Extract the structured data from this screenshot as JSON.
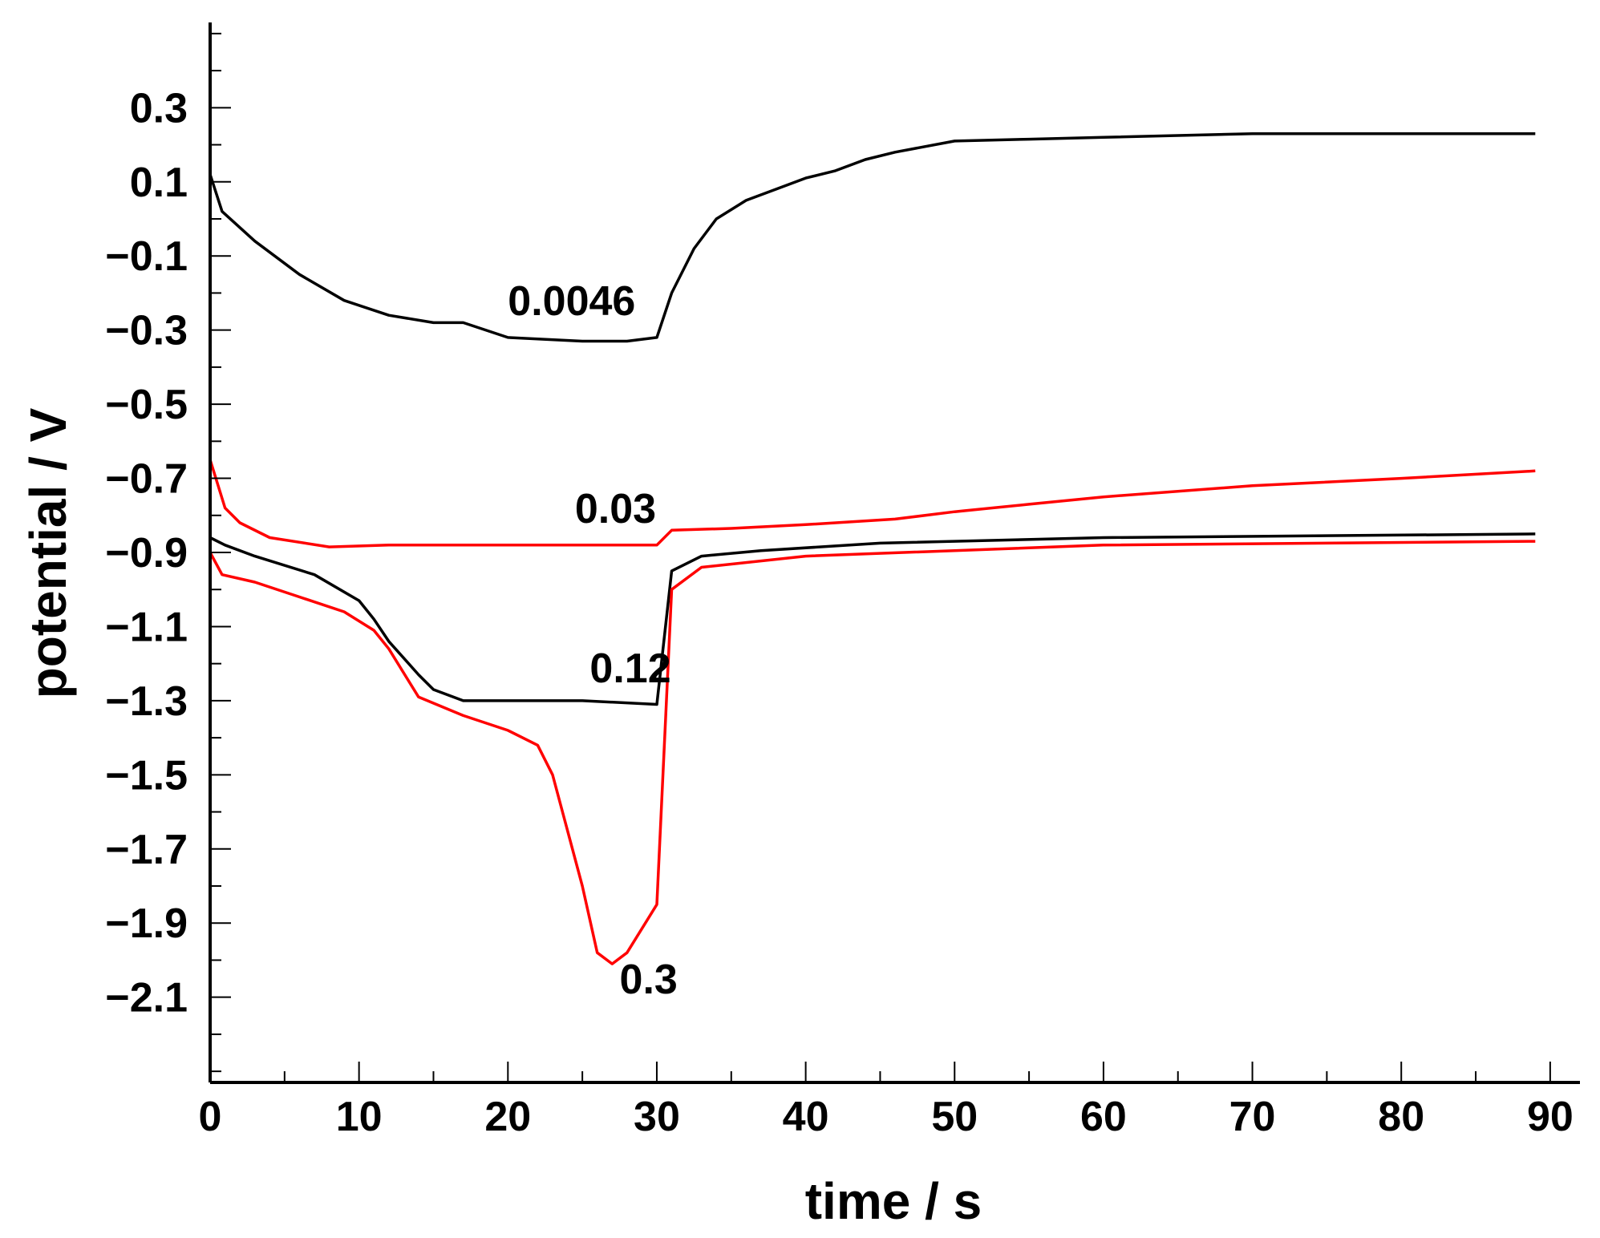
{
  "chart_data": {
    "type": "line",
    "xlabel": "time / s",
    "ylabel": "potential / V",
    "xlim": [
      0,
      92
    ],
    "ylim": [
      -2.33,
      0.53
    ],
    "x_ticks": [
      0,
      10,
      20,
      30,
      40,
      50,
      60,
      70,
      80,
      90
    ],
    "x_tick_labels": [
      "0",
      "10",
      "20",
      "30",
      "40",
      "50",
      "60",
      "70",
      "80",
      "90"
    ],
    "y_ticks": [
      0.3,
      0.1,
      -0.1,
      -0.3,
      -0.5,
      -0.7,
      -0.9,
      -1.1,
      -1.3,
      -1.5,
      -1.7,
      -1.9,
      -2.1
    ],
    "y_tick_labels": [
      "0.3",
      "0.1",
      "−0.1",
      "−0.3",
      "−0.5",
      "−0.7",
      "−0.9",
      "−1.1",
      "−1.3",
      "−1.5",
      "−1.7",
      "−1.9",
      "−2.1"
    ],
    "grid": false,
    "series": [
      {
        "label": "0.0046",
        "label_at": [
          20,
          -0.26
        ],
        "color": "#000000",
        "points": [
          [
            0,
            0.12
          ],
          [
            0.8,
            0.02
          ],
          [
            3,
            -0.06
          ],
          [
            6,
            -0.15
          ],
          [
            9,
            -0.22
          ],
          [
            12,
            -0.26
          ],
          [
            15,
            -0.28
          ],
          [
            17,
            -0.28
          ],
          [
            20,
            -0.32
          ],
          [
            25,
            -0.33
          ],
          [
            28,
            -0.33
          ],
          [
            30,
            -0.32
          ],
          [
            31,
            -0.2
          ],
          [
            32.5,
            -0.08
          ],
          [
            34,
            0.0
          ],
          [
            36,
            0.05
          ],
          [
            38,
            0.08
          ],
          [
            40,
            0.11
          ],
          [
            42,
            0.13
          ],
          [
            44,
            0.16
          ],
          [
            46,
            0.18
          ],
          [
            50,
            0.21
          ],
          [
            55,
            0.215
          ],
          [
            60,
            0.22
          ],
          [
            70,
            0.23
          ],
          [
            89,
            0.23
          ]
        ]
      },
      {
        "label": "0.03",
        "label_at": [
          24.5,
          -0.82
        ],
        "color": "#ff0000",
        "points": [
          [
            0,
            -0.65
          ],
          [
            1,
            -0.78
          ],
          [
            2,
            -0.82
          ],
          [
            4,
            -0.86
          ],
          [
            8,
            -0.885
          ],
          [
            12,
            -0.88
          ],
          [
            20,
            -0.88
          ],
          [
            30,
            -0.88
          ],
          [
            31,
            -0.84
          ],
          [
            35,
            -0.835
          ],
          [
            40,
            -0.825
          ],
          [
            46,
            -0.81
          ],
          [
            50,
            -0.79
          ],
          [
            55,
            -0.77
          ],
          [
            60,
            -0.75
          ],
          [
            70,
            -0.72
          ],
          [
            80,
            -0.7
          ],
          [
            89,
            -0.68
          ]
        ]
      },
      {
        "label": "0.12",
        "label_at": [
          25.5,
          -1.25
        ],
        "color": "#000000",
        "points": [
          [
            0,
            -0.86
          ],
          [
            1,
            -0.88
          ],
          [
            3,
            -0.91
          ],
          [
            7,
            -0.96
          ],
          [
            10,
            -1.03
          ],
          [
            11,
            -1.08
          ],
          [
            12,
            -1.14
          ],
          [
            14,
            -1.23
          ],
          [
            15,
            -1.27
          ],
          [
            17,
            -1.3
          ],
          [
            20,
            -1.3
          ],
          [
            25,
            -1.3
          ],
          [
            30,
            -1.31
          ],
          [
            31,
            -0.95
          ],
          [
            33,
            -0.91
          ],
          [
            37,
            -0.895
          ],
          [
            45,
            -0.875
          ],
          [
            60,
            -0.86
          ],
          [
            89,
            -0.85
          ]
        ]
      },
      {
        "label": "0.3",
        "label_at": [
          27.5,
          -2.09
        ],
        "color": "#ff0000",
        "points": [
          [
            0,
            -0.9
          ],
          [
            0.8,
            -0.96
          ],
          [
            3,
            -0.98
          ],
          [
            6,
            -1.02
          ],
          [
            9,
            -1.06
          ],
          [
            11,
            -1.11
          ],
          [
            12,
            -1.16
          ],
          [
            14,
            -1.29
          ],
          [
            17,
            -1.34
          ],
          [
            20,
            -1.38
          ],
          [
            22,
            -1.42
          ],
          [
            23,
            -1.5
          ],
          [
            25,
            -1.8
          ],
          [
            26,
            -1.98
          ],
          [
            27,
            -2.01
          ],
          [
            28,
            -1.98
          ],
          [
            30,
            -1.85
          ],
          [
            31,
            -1.0
          ],
          [
            33,
            -0.94
          ],
          [
            40,
            -0.91
          ],
          [
            60,
            -0.88
          ],
          [
            89,
            -0.87
          ]
        ]
      }
    ]
  }
}
